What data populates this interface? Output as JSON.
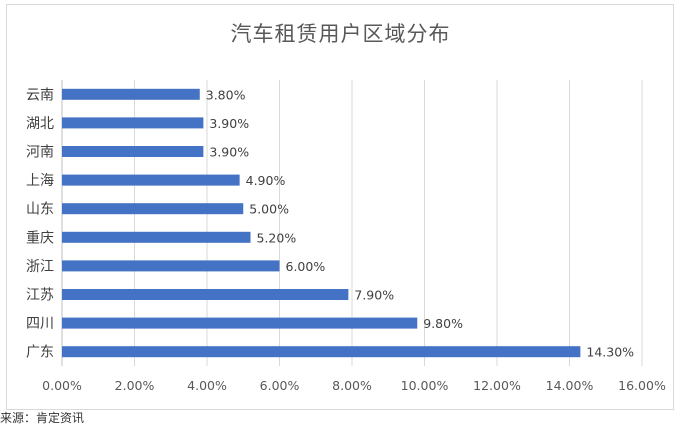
{
  "chart_data": {
    "type": "bar",
    "orientation": "horizontal",
    "title": "汽车租赁用户区域分布",
    "categories": [
      "云南",
      "湖北",
      "河南",
      "上海",
      "山东",
      "重庆",
      "浙江",
      "江苏",
      "四川",
      "广东"
    ],
    "values": [
      3.8,
      3.9,
      3.9,
      4.9,
      5.0,
      5.2,
      6.0,
      7.9,
      9.8,
      14.3
    ],
    "data_labels": [
      "3.80%",
      "3.90%",
      "3.90%",
      "4.90%",
      "5.00%",
      "5.20%",
      "6.00%",
      "7.90%",
      "9.80%",
      "14.30%"
    ],
    "xlim": [
      0,
      16
    ],
    "x_ticks": [
      "0.00%",
      "2.00%",
      "4.00%",
      "6.00%",
      "8.00%",
      "10.00%",
      "12.00%",
      "14.00%",
      "16.00%"
    ],
    "xlabel": "",
    "ylabel": "",
    "grid": "vertical",
    "legend": "none",
    "bar_color": "#4472c4"
  },
  "source_note": "来源：肯定资讯"
}
